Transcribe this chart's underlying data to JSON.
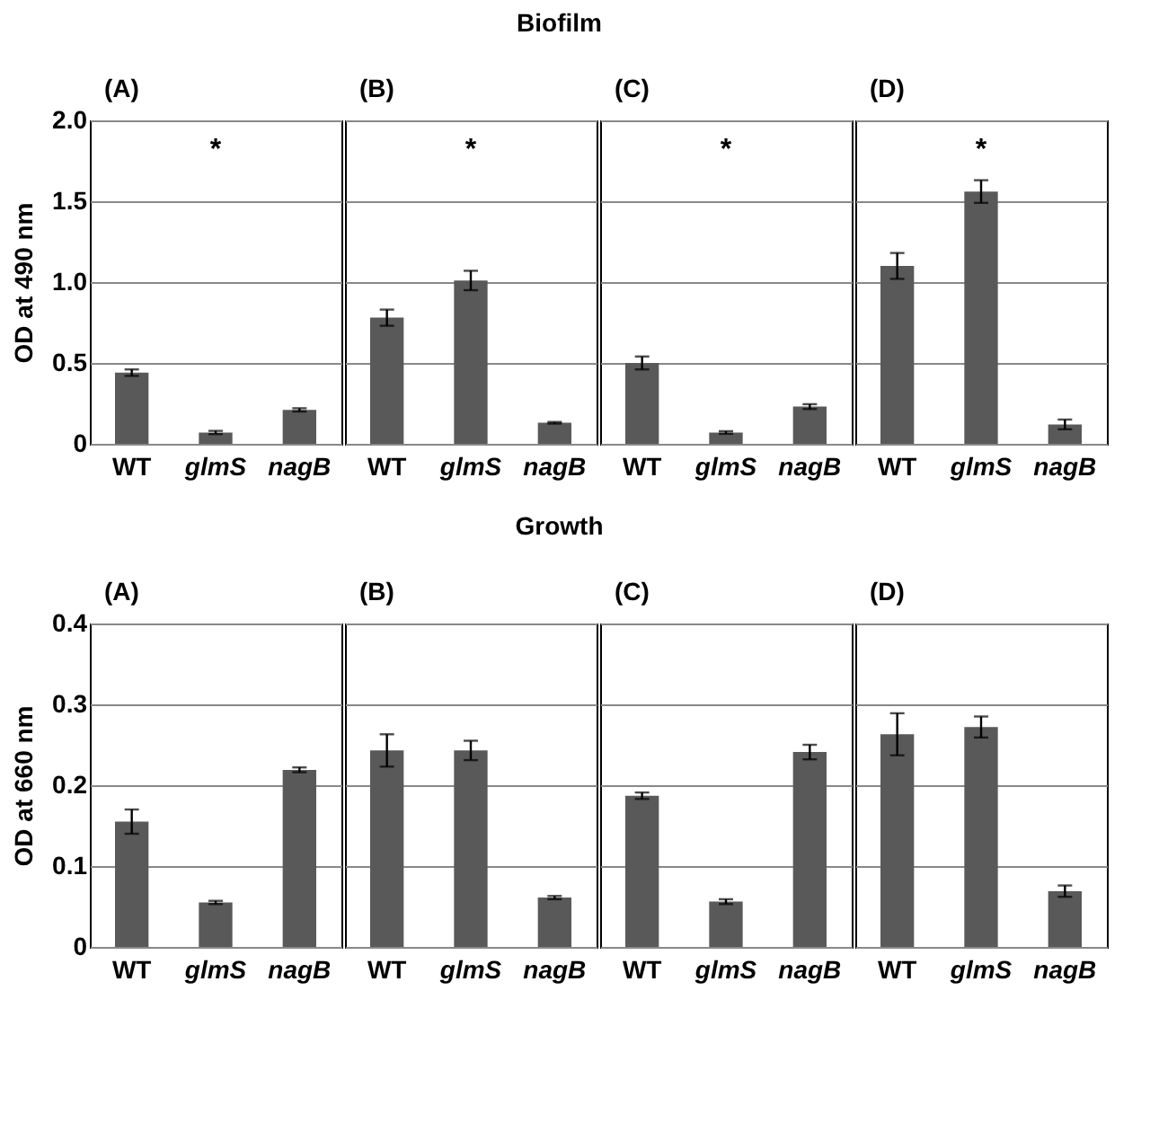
{
  "chart_data": [
    {
      "type": "other",
      "title": "Biofilm"
    },
    {
      "type": "bar",
      "title": "(A)",
      "ylabel": "OD at 490 nm",
      "categories": [
        "WT",
        "glmS",
        "nagB"
      ],
      "values": [
        0.44,
        0.07,
        0.21
      ],
      "errors": [
        0.02,
        0.01,
        0.01
      ],
      "color": "#595959",
      "ylim": [
        0,
        2
      ],
      "yticks": [
        0,
        0.5,
        {
          "value": 1,
          "label": "1.0"
        },
        1.5,
        {
          "value": 2,
          "label": "2.0"
        }
      ],
      "grid": "y",
      "annotations": [
        "*"
      ]
    },
    {
      "type": "bar",
      "title": "(B)",
      "categories": [
        "WT",
        "glmS",
        "nagB"
      ],
      "values": [
        0.78,
        1.01,
        0.13
      ],
      "errors": [
        0.05,
        0.06,
        0.005
      ],
      "color": "#595959",
      "ylim": [
        0,
        2
      ],
      "yticks": [
        0,
        0.5,
        1,
        1.5,
        2
      ],
      "grid": "y",
      "tick_labels": "x",
      "annotations": [
        "*"
      ]
    },
    {
      "type": "bar",
      "title": "(C)",
      "categories": [
        "WT",
        "glmS",
        "nagB"
      ],
      "values": [
        0.5,
        0.07,
        0.23
      ],
      "errors": [
        0.04,
        0.008,
        0.015
      ],
      "color": "#595959",
      "ylim": [
        0,
        2
      ],
      "yticks": [
        0,
        0.5,
        1,
        1.5,
        2
      ],
      "grid": "y",
      "tick_labels": "x",
      "annotations": [
        "*"
      ]
    },
    {
      "type": "bar",
      "title": "(D)",
      "categories": [
        "WT",
        "glmS",
        "nagB"
      ],
      "values": [
        1.1,
        1.56,
        0.12
      ],
      "errors": [
        0.08,
        0.07,
        0.03
      ],
      "color": "#595959",
      "ylim": [
        0,
        2
      ],
      "yticks": [
        0,
        0.5,
        1,
        1.5,
        2
      ],
      "grid": "y",
      "tick_labels": "x",
      "annotations": [
        "*"
      ]
    },
    {
      "type": "other",
      "title": "Growth"
    },
    {
      "type": "bar",
      "title": "(A)",
      "ylabel": "OD at 660 nm",
      "categories": [
        "WT",
        "glmS",
        "nagB"
      ],
      "values": [
        0.155,
        0.055,
        0.219
      ],
      "errors": [
        0.015,
        0.002,
        0.003
      ],
      "color": "#595959",
      "ylim": [
        0,
        0.4
      ],
      "yticks": [
        0,
        0.1,
        0.2,
        0.3,
        0.4
      ],
      "grid": "y"
    },
    {
      "type": "bar",
      "title": "(B)",
      "categories": [
        "WT",
        "glmS",
        "nagB"
      ],
      "values": [
        0.243,
        0.243,
        0.061
      ],
      "errors": [
        0.02,
        0.012,
        0.002
      ],
      "color": "#595959",
      "ylim": [
        0,
        0.4
      ],
      "yticks": [
        0,
        0.1,
        0.2,
        0.3,
        0.4
      ],
      "grid": "y",
      "tick_labels": "x"
    },
    {
      "type": "bar",
      "title": "(C)",
      "categories": [
        "WT",
        "glmS",
        "nagB"
      ],
      "values": [
        0.187,
        0.056,
        0.241
      ],
      "errors": [
        0.004,
        0.003,
        0.009
      ],
      "color": "#595959",
      "ylim": [
        0,
        0.4
      ],
      "yticks": [
        0,
        0.1,
        0.2,
        0.3,
        0.4
      ],
      "grid": "y",
      "tick_labels": "x"
    },
    {
      "type": "bar",
      "title": "(D)",
      "categories": [
        "WT",
        "glmS",
        "nagB"
      ],
      "values": [
        0.263,
        0.272,
        0.069
      ],
      "errors": [
        0.026,
        0.013,
        0.007
      ],
      "color": "#595959",
      "ylim": [
        0,
        0.4
      ],
      "yticks": [
        0,
        0.1,
        0.2,
        0.3,
        0.4
      ],
      "grid": "y",
      "tick_labels": "x"
    }
  ]
}
